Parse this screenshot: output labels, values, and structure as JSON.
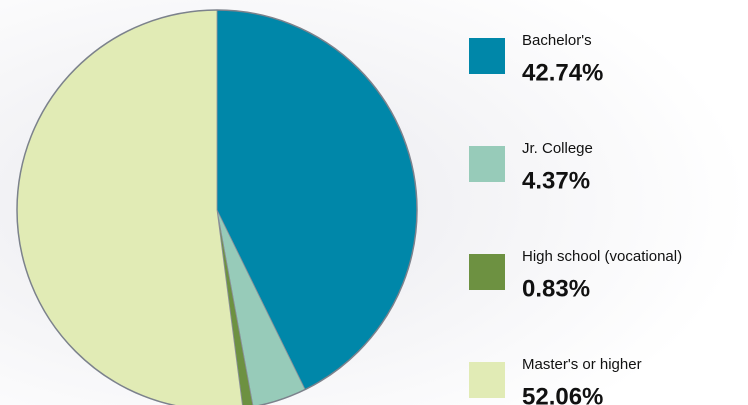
{
  "chart_data": {
    "type": "pie",
    "categories": [
      "Bachelor's",
      "Jr. College",
      "High school (vocational)",
      "Master's or higher"
    ],
    "values": [
      42.74,
      4.37,
      0.83,
      52.06
    ],
    "value_labels": [
      "42.74%",
      "4.37%",
      "0.83%",
      "52.06%"
    ],
    "colors": [
      "#0087a9",
      "#97cbb9",
      "#6d9141",
      "#e1ebb5"
    ]
  }
}
